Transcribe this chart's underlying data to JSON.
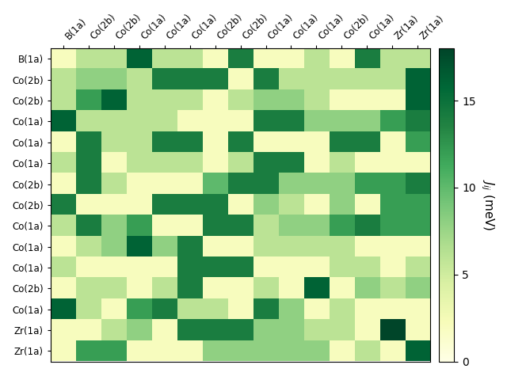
{
  "row_labels": [
    "B(1a)",
    "Co(2b)",
    "Co(2b)",
    "Co(1a)",
    "Co(1a)",
    "Co(1a)",
    "Co(2b)",
    "Co(2b)",
    "Co(1a)",
    "Co(1a)",
    "Co(1a)",
    "Co(2b)",
    "Co(1a)",
    "Zr(1a)",
    "Zr(1a)"
  ],
  "col_labels": [
    "B(1a)",
    "Co(2b)",
    "Co(2b)",
    "Co(1a)",
    "Co(1a)",
    "Co(1a)",
    "Co(2b)",
    "Co(2b)",
    "Co(1a)",
    "Co(1a)",
    "Co(1a)",
    "Co(2b)",
    "Co(1a)",
    "Zr(1a)",
    "Zr(1a)"
  ],
  "data": [
    [
      2,
      6,
      6,
      16,
      6,
      6,
      2,
      14,
      2,
      2,
      6,
      2,
      14,
      6,
      6
    ],
    [
      6,
      8,
      8,
      6,
      14,
      14,
      14,
      2,
      14,
      6,
      6,
      6,
      6,
      6,
      16
    ],
    [
      6,
      12,
      16,
      6,
      6,
      6,
      2,
      6,
      8,
      8,
      6,
      2,
      2,
      2,
      16
    ],
    [
      16,
      6,
      6,
      6,
      6,
      2,
      2,
      2,
      14,
      14,
      8,
      8,
      8,
      12,
      14
    ],
    [
      2,
      14,
      6,
      6,
      14,
      14,
      2,
      14,
      2,
      2,
      2,
      14,
      14,
      2,
      12
    ],
    [
      6,
      14,
      2,
      6,
      6,
      6,
      2,
      6,
      14,
      14,
      2,
      6,
      2,
      2,
      2
    ],
    [
      2,
      14,
      6,
      2,
      2,
      2,
      10,
      14,
      14,
      8,
      8,
      8,
      12,
      12,
      14
    ],
    [
      14,
      2,
      2,
      2,
      14,
      14,
      14,
      2,
      8,
      6,
      2,
      8,
      2,
      12,
      12
    ],
    [
      6,
      14,
      8,
      12,
      2,
      2,
      14,
      14,
      6,
      8,
      8,
      12,
      14,
      12,
      12
    ],
    [
      2,
      6,
      8,
      16,
      8,
      14,
      2,
      2,
      6,
      6,
      6,
      6,
      2,
      2,
      2
    ],
    [
      6,
      2,
      2,
      2,
      2,
      14,
      14,
      14,
      2,
      2,
      2,
      6,
      6,
      2,
      6
    ],
    [
      2,
      6,
      6,
      2,
      6,
      14,
      2,
      2,
      6,
      2,
      16,
      2,
      8,
      6,
      8
    ],
    [
      16,
      6,
      2,
      12,
      14,
      6,
      6,
      2,
      14,
      8,
      2,
      6,
      2,
      2,
      2
    ],
    [
      2,
      2,
      6,
      8,
      2,
      14,
      14,
      14,
      8,
      8,
      6,
      6,
      2,
      18,
      2
    ],
    [
      2,
      12,
      12,
      2,
      2,
      2,
      8,
      8,
      8,
      8,
      8,
      2,
      6,
      2,
      16
    ]
  ],
  "vmin": 0,
  "vmax": 18,
  "cbar_label": "$J_{ij}$ (meV)",
  "cbar_ticks": [
    0,
    5,
    10,
    15
  ],
  "colormap": "YlGn",
  "figsize": [
    6.4,
    4.8
  ],
  "dpi": 100
}
